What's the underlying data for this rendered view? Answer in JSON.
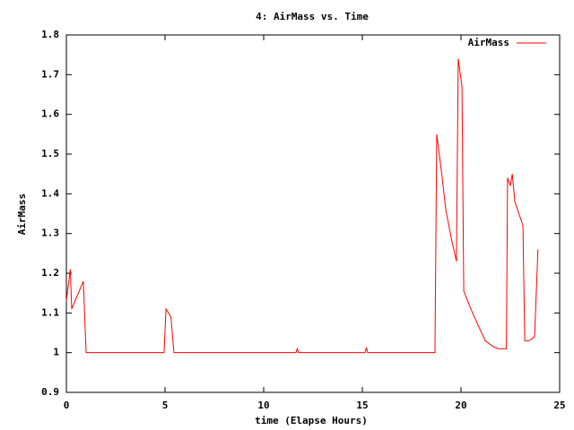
{
  "chart_data": {
    "type": "line",
    "title": "4: AirMass vs. Time",
    "xlabel": "time (Elapse Hours)",
    "ylabel": "AirMass",
    "x": [
      0,
      0.2,
      0.27,
      0.86,
      1.0,
      4.95,
      5.05,
      5.3,
      5.45,
      11.64,
      11.7,
      11.77,
      15.14,
      15.2,
      15.27,
      18.68,
      18.77,
      19.0,
      19.23,
      19.5,
      19.77,
      19.86,
      20.05,
      20.14,
      20.5,
      20.95,
      21.23,
      21.64,
      21.9,
      22.3,
      22.36,
      22.5,
      22.6,
      22.73,
      23.14,
      23.23,
      23.45,
      23.73,
      23.9
    ],
    "series": [
      {
        "name": "AirMass",
        "color": "#ff0000",
        "values": [
          1.13,
          1.21,
          1.11,
          1.18,
          1.0,
          1.0,
          1.11,
          1.09,
          1.0,
          1.0,
          1.01,
          1.0,
          1.0,
          1.013,
          1.0,
          1.0,
          1.55,
          1.46,
          1.36,
          1.29,
          1.23,
          1.74,
          1.67,
          1.155,
          1.11,
          1.06,
          1.03,
          1.015,
          1.01,
          1.01,
          1.44,
          1.42,
          1.45,
          1.38,
          1.32,
          1.03,
          1.03,
          1.04,
          1.26
        ]
      }
    ],
    "xlim": [
      0,
      25
    ],
    "xticks": [
      0,
      5,
      10,
      15,
      20,
      25
    ],
    "ylim": [
      0.9,
      1.8
    ],
    "yticks": [
      0.9,
      1,
      1.1,
      1.2,
      1.3,
      1.4,
      1.5,
      1.6,
      1.7,
      1.8
    ],
    "grid": false,
    "legend": "top-right"
  }
}
